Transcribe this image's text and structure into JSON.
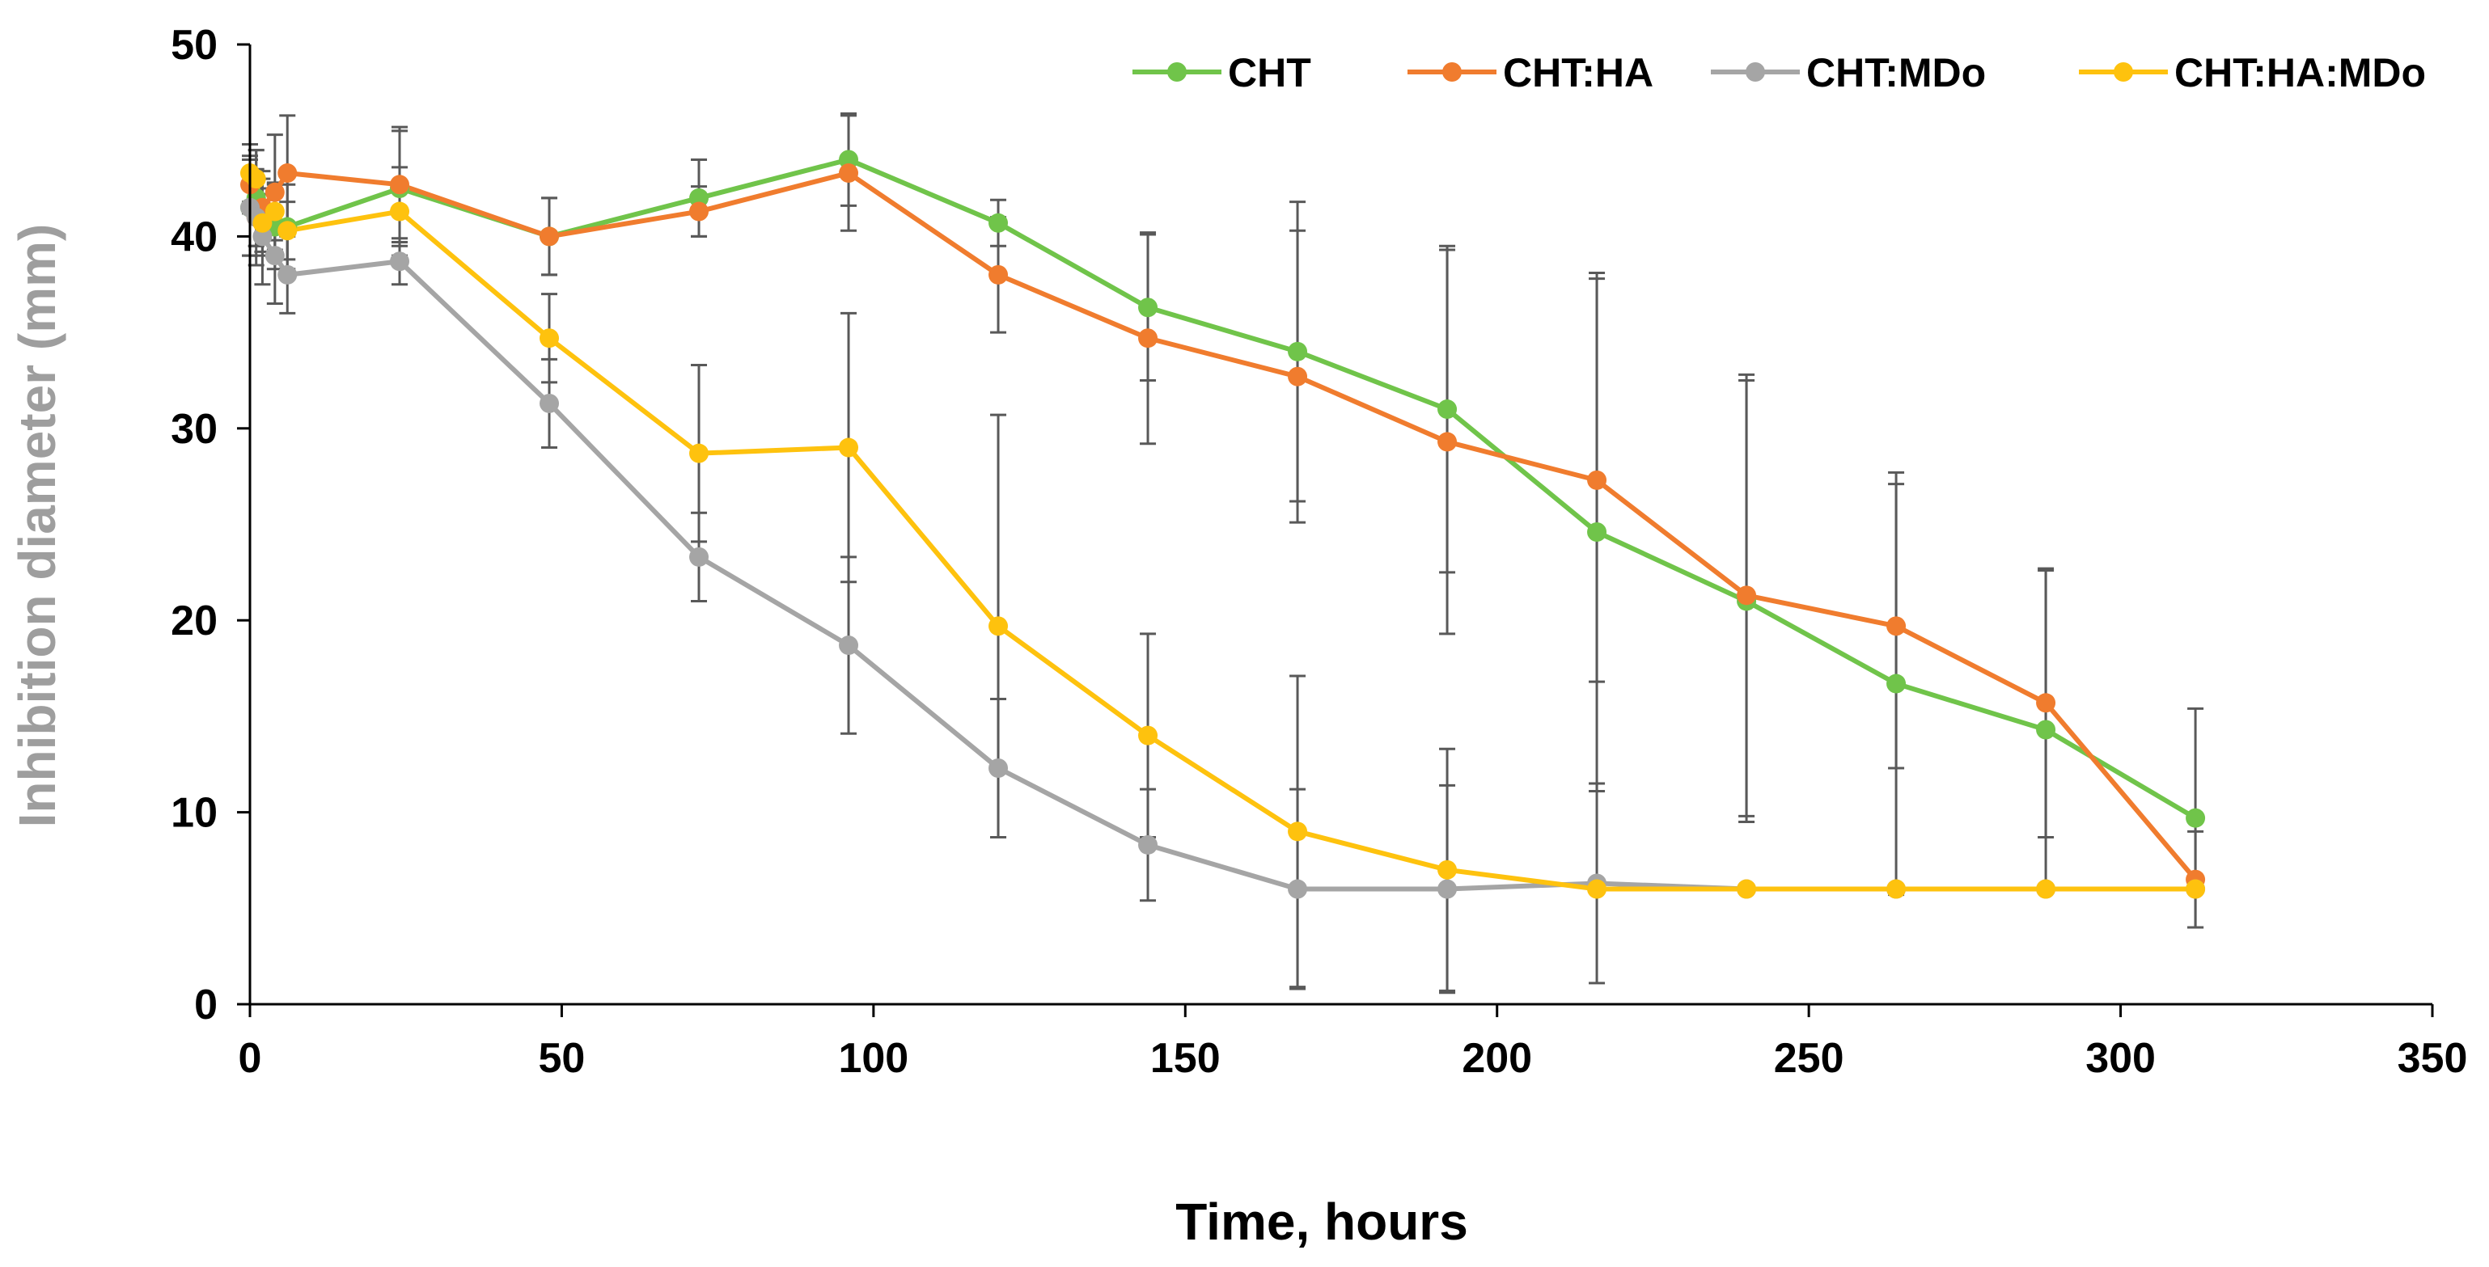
{
  "chart_data": {
    "type": "line",
    "title": "",
    "xlabel": "Time, hours",
    "ylabel": "Inhibition diameter (mm)",
    "xlim": [
      0,
      350
    ],
    "ylim": [
      0,
      50
    ],
    "x_ticks": [
      0,
      50,
      100,
      150,
      200,
      250,
      300,
      350
    ],
    "y_ticks": [
      0,
      10,
      20,
      30,
      40,
      50
    ],
    "x_tick_labels": [
      "0",
      "50",
      "100",
      "150",
      "200",
      "250",
      "300",
      "350"
    ],
    "y_tick_labels": [
      "0",
      "10",
      "20",
      "30",
      "40",
      "50"
    ],
    "grid": false,
    "legend_position": "top",
    "series": [
      {
        "name": "CHT",
        "color": "#70c44a",
        "x": [
          0,
          1,
          2,
          4,
          6,
          24,
          48,
          72,
          96,
          120,
          144,
          168,
          192,
          216,
          240,
          264,
          288,
          312
        ],
        "y": [
          41.5,
          42.0,
          41.2,
          40.5,
          40.5,
          42.5,
          40.0,
          42.0,
          44.0,
          40.7,
          36.3,
          34.0,
          31.0,
          24.6,
          21.0,
          16.7,
          14.3,
          9.7
        ],
        "err": [
          2.5,
          2.5,
          2.2,
          2.2,
          2.2,
          3.0,
          2.0,
          2.0,
          2.4,
          1.2,
          3.8,
          7.8,
          8.5,
          13.5,
          11.5,
          11.0,
          8.3,
          5.7
        ]
      },
      {
        "name": "CHT:HA",
        "color": "#f07c2e",
        "x": [
          0,
          1,
          2,
          4,
          6,
          24,
          48,
          72,
          96,
          120,
          144,
          168,
          192,
          216,
          240,
          264,
          288,
          312
        ],
        "y": [
          42.7,
          41.0,
          41.5,
          42.3,
          43.3,
          42.7,
          40.0,
          41.3,
          43.3,
          38.0,
          34.7,
          32.7,
          29.3,
          27.3,
          21.3,
          19.7,
          15.7,
          6.5
        ],
        "err": [
          1.5,
          1.5,
          1.5,
          3.0,
          3.0,
          3.0,
          2.0,
          1.3,
          3.0,
          3.0,
          5.5,
          7.6,
          10.0,
          10.5,
          11.5,
          7.4,
          7.0,
          2.5
        ]
      },
      {
        "name": "CHT:MDo",
        "color": "#a5a5a5",
        "x": [
          0,
          1,
          2,
          4,
          6,
          24,
          48,
          72,
          96,
          120,
          144,
          168,
          192,
          216,
          240,
          264,
          288,
          312
        ],
        "y": [
          41.5,
          41.0,
          40.0,
          39.0,
          38.0,
          38.7,
          31.3,
          23.3,
          18.7,
          12.3,
          8.3,
          6.0,
          6.0,
          6.3,
          6.0,
          6.0,
          6.0,
          6.0
        ],
        "err": [
          2.5,
          2.5,
          2.5,
          2.5,
          2.0,
          1.2,
          2.3,
          2.3,
          4.6,
          3.6,
          2.9,
          5.2,
          5.4,
          5.2,
          0,
          0,
          0,
          0
        ]
      },
      {
        "name": "CHT:HA:MDo",
        "color": "#fec20e",
        "x": [
          0,
          1,
          2,
          4,
          6,
          24,
          48,
          72,
          96,
          120,
          144,
          168,
          192,
          216,
          240,
          264,
          288,
          312
        ],
        "y": [
          43.3,
          43.0,
          40.7,
          41.3,
          40.3,
          41.3,
          34.7,
          28.7,
          29.0,
          19.7,
          14.0,
          9.0,
          7.0,
          6.0,
          6.0,
          6.0,
          6.0,
          6.0
        ],
        "err": [
          1.5,
          1.5,
          1.5,
          1.5,
          1.5,
          2.3,
          2.3,
          4.6,
          7.0,
          11.0,
          5.3,
          8.1,
          6.3,
          0,
          0,
          0,
          0,
          0
        ]
      }
    ]
  }
}
